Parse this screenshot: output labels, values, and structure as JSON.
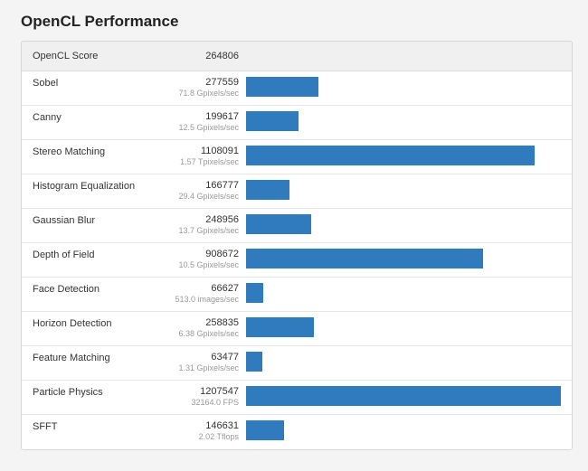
{
  "page": {
    "title": "OpenCL Performance"
  },
  "summary": {
    "label": "OpenCL Score",
    "score": "264806"
  },
  "chart_data": {
    "type": "bar",
    "categories": [
      "Sobel",
      "Canny",
      "Stereo Matching",
      "Histogram Equalization",
      "Gaussian Blur",
      "Depth of Field",
      "Face Detection",
      "Horizon Detection",
      "Feature Matching",
      "Particle Physics",
      "SFFT"
    ],
    "values": [
      277559,
      199617,
      1108091,
      166777,
      248956,
      908672,
      66627,
      258835,
      63477,
      1207547,
      146631
    ],
    "color": "#2f7bbd",
    "title": "",
    "xlabel": "",
    "ylabel": ""
  },
  "benchmarks": [
    {
      "name": "Sobel",
      "score": "277559",
      "rate": "71.8 Gpixels/sec",
      "value": 277559
    },
    {
      "name": "Canny",
      "score": "199617",
      "rate": "12.5 Gpixels/sec",
      "value": 199617
    },
    {
      "name": "Stereo Matching",
      "score": "1108091",
      "rate": "1.57 Tpixels/sec",
      "value": 1108091
    },
    {
      "name": "Histogram Equalization",
      "score": "166777",
      "rate": "29.4 Gpixels/sec",
      "value": 166777
    },
    {
      "name": "Gaussian Blur",
      "score": "248956",
      "rate": "13.7 Gpixels/sec",
      "value": 248956
    },
    {
      "name": "Depth of Field",
      "score": "908672",
      "rate": "10.5 Gpixels/sec",
      "value": 908672
    },
    {
      "name": "Face Detection",
      "score": "66627",
      "rate": "513.0 images/sec",
      "value": 66627
    },
    {
      "name": "Horizon Detection",
      "score": "258835",
      "rate": "6.38 Gpixels/sec",
      "value": 258835
    },
    {
      "name": "Feature Matching",
      "score": "63477",
      "rate": "1.31 Gpixels/sec",
      "value": 63477
    },
    {
      "name": "Particle Physics",
      "score": "1207547",
      "rate": "32164.0 FPS",
      "value": 1207547
    },
    {
      "name": "SFFT",
      "score": "146631",
      "rate": "2.02 Tflops",
      "value": 146631
    }
  ]
}
